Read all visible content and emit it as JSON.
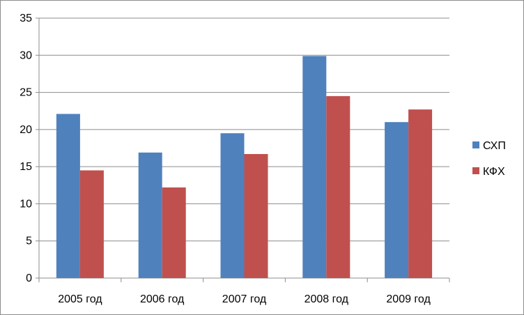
{
  "chart_data": {
    "type": "bar",
    "categories": [
      "2005 год",
      "2006 год",
      "2007 год",
      "2008 год",
      "2009 год"
    ],
    "series": [
      {
        "name": "СХП",
        "values": [
          22.1,
          16.9,
          19.5,
          29.9,
          21.0
        ],
        "color": "#4f81bd"
      },
      {
        "name": "КФХ",
        "values": [
          14.5,
          12.2,
          16.7,
          24.5,
          22.7
        ],
        "color": "#c0504d"
      }
    ],
    "ylim": [
      0,
      35
    ],
    "yticks": [
      0,
      5,
      10,
      15,
      20,
      25,
      30,
      35
    ],
    "grid": true,
    "legend": "right",
    "title": "",
    "xlabel": "",
    "ylabel": ""
  }
}
